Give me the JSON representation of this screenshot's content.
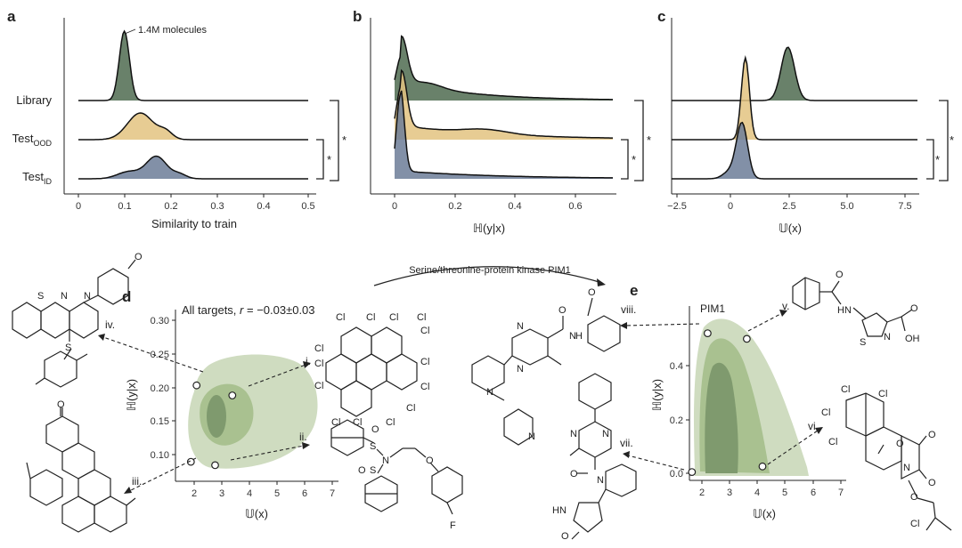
{
  "chart_data": [
    {
      "panel": "a",
      "type": "area",
      "annotation": "1.4M molecules",
      "xlabel": "Similarity to train",
      "xticks": [
        "0",
        "0.1",
        "0.2",
        "0.3",
        "0.4",
        "0.5"
      ],
      "xlim": [
        0,
        0.5
      ],
      "series": [
        {
          "name": "Library",
          "mode": 0.1,
          "color": "#4f6b50"
        },
        {
          "name": "Test",
          "sub": "OOD",
          "mode": 0.14,
          "color": "#e3c380"
        },
        {
          "name": "Test",
          "sub": "ID",
          "mode": 0.17,
          "color": "#6c7c98"
        }
      ],
      "significance": [
        "*",
        "*"
      ]
    },
    {
      "panel": "b",
      "type": "area",
      "xlabel": "ℍ(y|x)",
      "xticks": [
        "0",
        "0.2",
        "0.4",
        "0.6"
      ],
      "xlim": [
        -0.02,
        0.75
      ],
      "series": [
        {
          "name": "Library",
          "mode": 0.01,
          "color": "#4f6b50"
        },
        {
          "name": "Test OOD",
          "mode": 0.01,
          "color": "#e3c380"
        },
        {
          "name": "Test ID",
          "mode": 0.0,
          "color": "#6c7c98"
        }
      ],
      "significance": [
        "*",
        "*"
      ]
    },
    {
      "panel": "c",
      "type": "area",
      "xlabel": "𝕌(x)",
      "xticks": [
        "−2.5",
        "0",
        "2.5",
        "5.0",
        "7.5"
      ],
      "xlim": [
        -2.5,
        8.5
      ],
      "series": [
        {
          "name": "Library",
          "mode": 2.7,
          "color": "#4f6b50"
        },
        {
          "name": "Test OOD",
          "mode": 0.8,
          "color": "#e3c380"
        },
        {
          "name": "Test ID",
          "mode": 0.6,
          "color": "#6c7c98"
        }
      ],
      "significance": [
        "*",
        "*"
      ]
    },
    {
      "panel": "d",
      "type": "heatmap",
      "title_prefix": "All targets, ",
      "title_r": "r",
      "title_suffix": " = −0.03±0.03",
      "xlabel": "𝕌(x)",
      "ylabel": "ℍ(y|x)",
      "xticks": [
        "2",
        "3",
        "4",
        "5",
        "6",
        "7"
      ],
      "yticks": [
        "0.10",
        "0.15",
        "0.20",
        "0.25",
        "0.30"
      ],
      "xlim": [
        1.4,
        7.2
      ],
      "ylim": [
        0.07,
        0.33
      ],
      "points": [
        {
          "label": "i.",
          "x": 3.7,
          "y": 0.198
        },
        {
          "label": "ii.",
          "x": 3.1,
          "y": 0.094
        },
        {
          "label": "iii.",
          "x": 2.25,
          "y": 0.099
        },
        {
          "label": "iv.",
          "x": 2.45,
          "y": 0.213
        }
      ]
    },
    {
      "panel": "e",
      "type": "heatmap",
      "title": "PIM1",
      "xlabel": "𝕌(x)",
      "ylabel": "ℍ(y|x)",
      "xticks": [
        "2",
        "3",
        "4",
        "5",
        "6",
        "7"
      ],
      "yticks": [
        "0.0",
        "0.2",
        "0.4"
      ],
      "xlim": [
        1.2,
        7.2
      ],
      "ylim": [
        -0.02,
        0.52
      ],
      "points": [
        {
          "label": "v.",
          "x": 3.6,
          "y": 0.47
        },
        {
          "label": "vi.",
          "x": 4.2,
          "y": 0.02
        },
        {
          "label": "vii.",
          "x": 1.5,
          "y": 0.0
        },
        {
          "label": "viii.",
          "x": 2.1,
          "y": 0.49
        }
      ]
    }
  ],
  "panel_labels": [
    "a",
    "b",
    "c",
    "d",
    "e"
  ],
  "arrow_label": "Serine/threonine-protein kinase PIM1",
  "roman": [
    "i.",
    "ii.",
    "iii.",
    "iv.",
    "v.",
    "vi.",
    "vii.",
    "viii."
  ],
  "atoms": {
    "Cl": "Cl",
    "S": "S",
    "N": "N",
    "O": "O",
    "F": "F",
    "H": "H",
    "NH": "NH",
    "HN": "HN",
    "OH": "OH"
  },
  "colors": {
    "library": "#4f6b50",
    "ood": "#e3c380",
    "id": "#6c7c98",
    "density_light": "#cfdcc0",
    "density_mid": "#a9c190",
    "density_dark": "#7f9a6e"
  }
}
